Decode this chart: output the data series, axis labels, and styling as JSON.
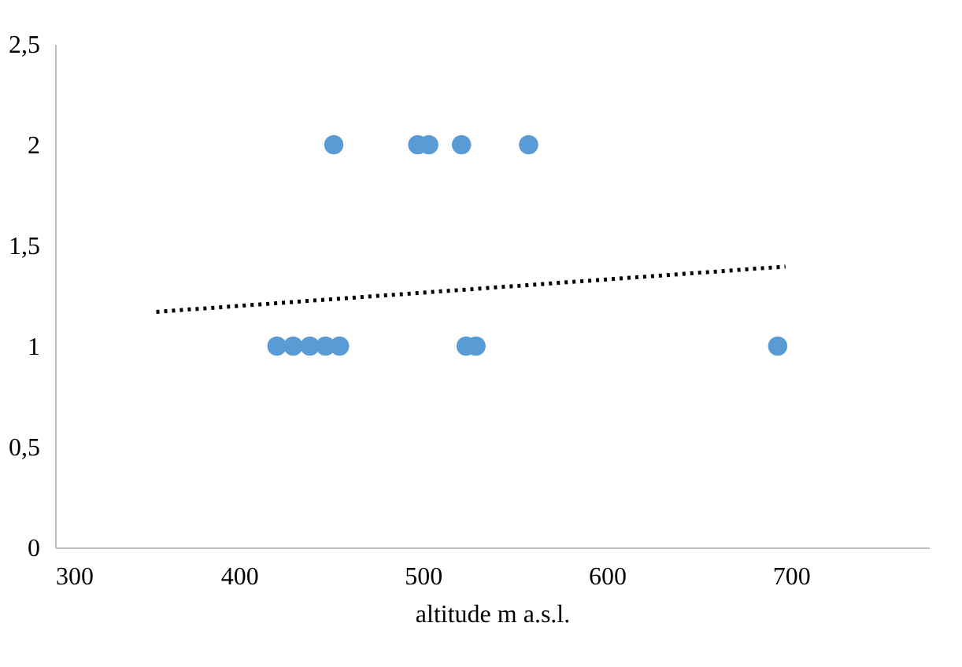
{
  "chart_data": {
    "type": "scatter",
    "xlabel": "altitude m a.s.l.",
    "xlim": [
      300,
      775
    ],
    "xticks": [
      300,
      400,
      500,
      600,
      700
    ],
    "ylim": [
      0,
      2.5
    ],
    "yticks": [
      0,
      {
        "value": 0.5,
        "label": "0,5"
      },
      1,
      {
        "value": 1.5,
        "label": "1,5"
      },
      2,
      {
        "value": 2.5,
        "label": "2,5"
      }
    ],
    "grid": false,
    "series": [
      {
        "color": "#5b9bd5",
        "marker": "circle",
        "x": [
          420.6,
          429.4,
          438.5,
          447,
          454.6,
          523.4,
          528.8,
          692.8,
          451.5,
          497.1,
          503.1,
          520.9,
          557.4
        ],
        "values": [
          1,
          1,
          1,
          1,
          1,
          1,
          1,
          1,
          2,
          2,
          2,
          2,
          2
        ]
      },
      {
        "type": "line",
        "color": "#000000",
        "line_style": "dotted",
        "x": [
          355,
          697
        ],
        "values": [
          1.17,
          1.395
        ]
      }
    ]
  }
}
